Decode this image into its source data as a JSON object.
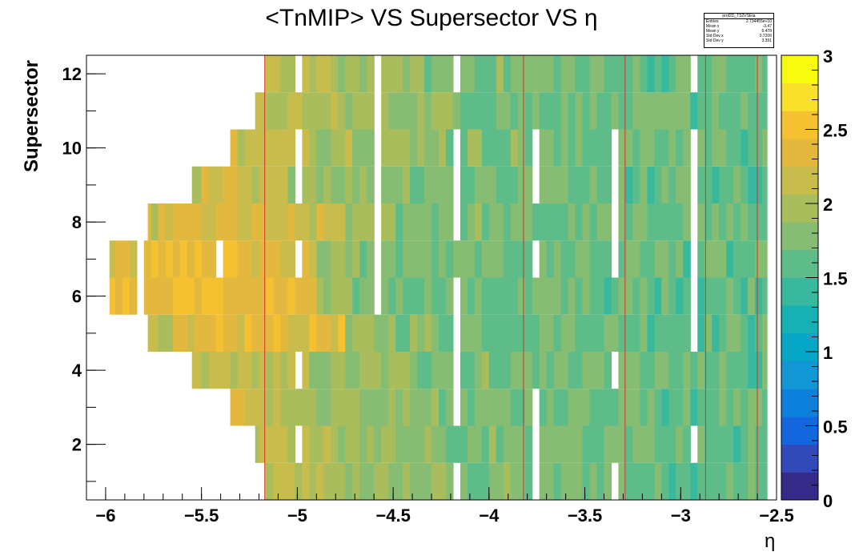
{
  "chart_data": {
    "type": "heatmap",
    "title": "<TnMIP> VS Supersector VS η",
    "xlabel": "η",
    "ylabel": "Supersector",
    "xlim": [
      -6.1,
      -2.5
    ],
    "ylim": [
      0.5,
      12.5
    ],
    "x_ticks": [
      "−6",
      "−5.5",
      "−5",
      "−4.5",
      "−4",
      "−3.5",
      "−3",
      "−2.5"
    ],
    "x_tick_values": [
      -6,
      -5.5,
      -5,
      -4.5,
      -4,
      -3.5,
      -3,
      -2.5
    ],
    "y_ticks": [
      "2",
      "4",
      "6",
      "8",
      "10",
      "12"
    ],
    "y_tick_values": [
      2,
      4,
      6,
      8,
      10,
      12
    ],
    "colorbar": {
      "range": [
        0,
        3
      ],
      "ticks": [
        "0",
        "0.5",
        "1",
        "1.5",
        "2",
        "2.5",
        "3"
      ],
      "tick_values": [
        0,
        0.5,
        1,
        1.5,
        2,
        2.5,
        3
      ],
      "palette": [
        "#352a87",
        "#3249b9",
        "#1366dd",
        "#0d80dc",
        "#1296d4",
        "#06a7c6",
        "#15b1b4",
        "#38b99e",
        "#5ebc89",
        "#86bd72",
        "#aabd5c",
        "#c8bc4d",
        "#e2b83e",
        "#f6c131",
        "#f9e02a",
        "#f9fb0e"
      ]
    },
    "rows": [
      {
        "supersector": 1,
        "eta_min": -5.17,
        "eta_max": -2.55,
        "z": [
          2.05,
          1.95,
          1.9,
          1.85,
          1.8,
          1.75,
          1.72,
          1.7,
          1.68,
          1.65,
          1.65,
          1.62,
          1.6
        ]
      },
      {
        "supersector": 2,
        "eta_min": -5.22,
        "eta_max": -2.55,
        "z": [
          2.1,
          2.0,
          1.9,
          1.85,
          1.8,
          1.75,
          1.72,
          1.7,
          1.68,
          1.66,
          1.65,
          1.63,
          1.6
        ]
      },
      {
        "supersector": 3,
        "eta_min": -5.35,
        "eta_max": -2.55,
        "z": [
          2.15,
          2.05,
          1.95,
          1.85,
          1.8,
          1.75,
          1.72,
          1.7,
          1.68,
          1.66,
          1.65,
          1.63,
          1.6
        ]
      },
      {
        "supersector": 4,
        "eta_min": -5.55,
        "eta_max": -2.55,
        "z": [
          2.1,
          2.05,
          1.95,
          1.9,
          1.85,
          1.78,
          1.74,
          1.7,
          1.68,
          1.66,
          1.65,
          1.63,
          1.6
        ]
      },
      {
        "supersector": 5,
        "eta_min": -5.78,
        "eta_max": -2.55,
        "z": [
          2.2,
          2.3,
          2.35,
          2.3,
          1.85,
          1.8,
          1.75,
          1.72,
          1.7,
          1.68,
          1.66,
          1.64,
          1.62
        ]
      },
      {
        "supersector": 6,
        "eta_min": -5.98,
        "eta_max": -2.55,
        "z": [
          2.35,
          2.45,
          2.4,
          2.35,
          1.8,
          1.75,
          1.72,
          1.7,
          1.68,
          1.66,
          1.65,
          1.63,
          1.6
        ]
      },
      {
        "supersector": 7,
        "eta_min": -5.98,
        "eta_max": -2.55,
        "z": [
          2.35,
          2.4,
          2.35,
          2.3,
          1.8,
          1.75,
          1.72,
          1.7,
          1.68,
          1.66,
          1.65,
          1.63,
          1.6
        ]
      },
      {
        "supersector": 8,
        "eta_min": -5.78,
        "eta_max": -2.55,
        "z": [
          2.2,
          2.25,
          2.2,
          2.1,
          1.85,
          1.8,
          1.75,
          1.72,
          1.7,
          1.68,
          1.66,
          1.64,
          1.62
        ]
      },
      {
        "supersector": 9,
        "eta_min": -5.55,
        "eta_max": -2.55,
        "z": [
          2.15,
          2.05,
          1.95,
          1.9,
          1.85,
          1.78,
          1.74,
          1.7,
          1.68,
          1.66,
          1.65,
          1.63,
          1.6
        ]
      },
      {
        "supersector": 10,
        "eta_min": -5.35,
        "eta_max": -2.55,
        "z": [
          2.15,
          2.1,
          2.0,
          1.9,
          1.85,
          1.8,
          1.75,
          1.72,
          1.7,
          1.68,
          1.66,
          1.64,
          1.62
        ]
      },
      {
        "supersector": 11,
        "eta_min": -5.22,
        "eta_max": -2.55,
        "z": [
          2.05,
          2.0,
          1.95,
          1.88,
          1.82,
          1.78,
          1.74,
          1.72,
          1.7,
          1.68,
          1.66,
          1.65,
          1.63
        ]
      },
      {
        "supersector": 12,
        "eta_min": -5.17,
        "eta_max": -2.55,
        "z": [
          2.05,
          1.98,
          1.92,
          1.86,
          1.8,
          1.76,
          1.73,
          1.7,
          1.68,
          1.66,
          1.65,
          1.63,
          1.6
        ]
      }
    ],
    "vertical_lines_eta": [
      -5.17,
      -3.82,
      -3.29,
      -2.87,
      -2.6
    ],
    "vertical_line_color": "#d0342c",
    "grid": false
  },
  "stats": {
    "name": "prof2D_TS2VSEta",
    "rows": [
      {
        "label": "Entries",
        "value": "2.734455e+10"
      },
      {
        "label": "Mean x",
        "value": "-3.47"
      },
      {
        "label": "Mean y",
        "value": "6.478"
      },
      {
        "label": "Std Dev x",
        "value": "0.7206"
      },
      {
        "label": "Std Dev y",
        "value": "3.391"
      }
    ]
  }
}
